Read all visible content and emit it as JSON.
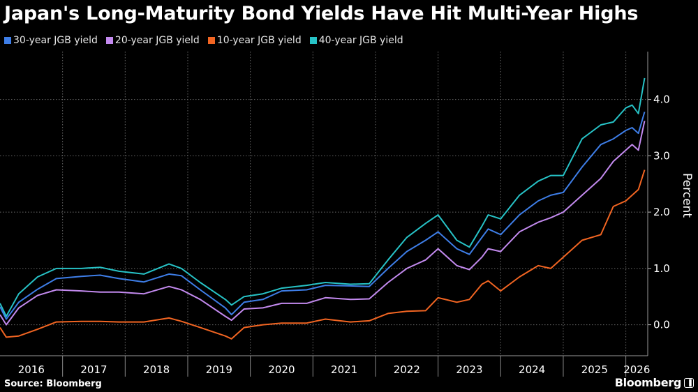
{
  "title": "Japan's Long-Maturity Bond Yields Have Hit Multi-Year Highs",
  "source": "Source: Bloomberg",
  "brand": "Bloomberg",
  "chart_data": {
    "type": "line",
    "title": "Japan's Long-Maturity Bond Yields Have Hit Multi-Year Highs",
    "ylabel": "Percent",
    "xlabel": "",
    "ylim": [
      -0.55,
      4.85
    ],
    "xlim": [
      2016.0,
      2026.35
    ],
    "yticks": [
      "0.0",
      "1.0",
      "2.0",
      "3.0",
      "4.0"
    ],
    "xticks": [
      "2016",
      "2017",
      "2018",
      "2019",
      "2020",
      "2021",
      "2022",
      "2023",
      "2024",
      "2025",
      "2026"
    ],
    "grid": true,
    "legend": "top-left",
    "series": [
      {
        "name": "30-year JGB yield",
        "color": "#3e7ee8",
        "points": [
          [
            2016.0,
            0.32
          ],
          [
            2016.1,
            0.1
          ],
          [
            2016.3,
            0.4
          ],
          [
            2016.6,
            0.63
          ],
          [
            2016.9,
            0.82
          ],
          [
            2017.3,
            0.86
          ],
          [
            2017.6,
            0.88
          ],
          [
            2017.9,
            0.82
          ],
          [
            2018.3,
            0.76
          ],
          [
            2018.7,
            0.9
          ],
          [
            2018.9,
            0.87
          ],
          [
            2019.2,
            0.62
          ],
          [
            2019.6,
            0.3
          ],
          [
            2019.7,
            0.18
          ],
          [
            2019.9,
            0.4
          ],
          [
            2020.2,
            0.45
          ],
          [
            2020.5,
            0.6
          ],
          [
            2020.9,
            0.62
          ],
          [
            2021.2,
            0.7
          ],
          [
            2021.6,
            0.69
          ],
          [
            2021.9,
            0.68
          ],
          [
            2022.2,
            1.0
          ],
          [
            2022.5,
            1.3
          ],
          [
            2022.8,
            1.5
          ],
          [
            2023.0,
            1.65
          ],
          [
            2023.3,
            1.35
          ],
          [
            2023.5,
            1.25
          ],
          [
            2023.7,
            1.55
          ],
          [
            2023.8,
            1.7
          ],
          [
            2024.0,
            1.6
          ],
          [
            2024.3,
            1.95
          ],
          [
            2024.6,
            2.2
          ],
          [
            2024.8,
            2.3
          ],
          [
            2025.0,
            2.35
          ],
          [
            2025.3,
            2.8
          ],
          [
            2025.6,
            3.2
          ],
          [
            2025.8,
            3.3
          ],
          [
            2026.0,
            3.45
          ],
          [
            2026.1,
            3.5
          ],
          [
            2026.2,
            3.4
          ],
          [
            2026.3,
            3.78
          ]
        ]
      },
      {
        "name": "20-year JGB yield",
        "color": "#c38aef",
        "points": [
          [
            2016.0,
            0.18
          ],
          [
            2016.1,
            0.0
          ],
          [
            2016.3,
            0.3
          ],
          [
            2016.6,
            0.52
          ],
          [
            2016.9,
            0.62
          ],
          [
            2017.3,
            0.6
          ],
          [
            2017.6,
            0.58
          ],
          [
            2017.9,
            0.58
          ],
          [
            2018.3,
            0.55
          ],
          [
            2018.7,
            0.68
          ],
          [
            2018.9,
            0.62
          ],
          [
            2019.2,
            0.45
          ],
          [
            2019.6,
            0.15
          ],
          [
            2019.7,
            0.08
          ],
          [
            2019.9,
            0.28
          ],
          [
            2020.2,
            0.3
          ],
          [
            2020.5,
            0.38
          ],
          [
            2020.9,
            0.38
          ],
          [
            2021.2,
            0.48
          ],
          [
            2021.6,
            0.45
          ],
          [
            2021.9,
            0.46
          ],
          [
            2022.2,
            0.75
          ],
          [
            2022.5,
            1.0
          ],
          [
            2022.8,
            1.15
          ],
          [
            2023.0,
            1.35
          ],
          [
            2023.3,
            1.05
          ],
          [
            2023.5,
            0.98
          ],
          [
            2023.7,
            1.2
          ],
          [
            2023.8,
            1.35
          ],
          [
            2024.0,
            1.3
          ],
          [
            2024.3,
            1.65
          ],
          [
            2024.6,
            1.82
          ],
          [
            2024.8,
            1.9
          ],
          [
            2025.0,
            2.0
          ],
          [
            2025.3,
            2.3
          ],
          [
            2025.6,
            2.6
          ],
          [
            2025.8,
            2.9
          ],
          [
            2026.0,
            3.1
          ],
          [
            2026.1,
            3.2
          ],
          [
            2026.2,
            3.1
          ],
          [
            2026.3,
            3.62
          ]
        ]
      },
      {
        "name": "10-year JGB yield",
        "color": "#f26522",
        "points": [
          [
            2016.0,
            -0.05
          ],
          [
            2016.1,
            -0.22
          ],
          [
            2016.3,
            -0.2
          ],
          [
            2016.6,
            -0.08
          ],
          [
            2016.9,
            0.05
          ],
          [
            2017.3,
            0.06
          ],
          [
            2017.6,
            0.06
          ],
          [
            2017.9,
            0.05
          ],
          [
            2018.3,
            0.05
          ],
          [
            2018.7,
            0.12
          ],
          [
            2018.9,
            0.06
          ],
          [
            2019.2,
            -0.05
          ],
          [
            2019.6,
            -0.2
          ],
          [
            2019.7,
            -0.25
          ],
          [
            2019.9,
            -0.05
          ],
          [
            2020.2,
            0.0
          ],
          [
            2020.5,
            0.03
          ],
          [
            2020.9,
            0.03
          ],
          [
            2021.2,
            0.1
          ],
          [
            2021.6,
            0.05
          ],
          [
            2021.9,
            0.07
          ],
          [
            2022.2,
            0.2
          ],
          [
            2022.5,
            0.24
          ],
          [
            2022.8,
            0.25
          ],
          [
            2023.0,
            0.48
          ],
          [
            2023.3,
            0.4
          ],
          [
            2023.5,
            0.45
          ],
          [
            2023.7,
            0.72
          ],
          [
            2023.8,
            0.78
          ],
          [
            2024.0,
            0.6
          ],
          [
            2024.3,
            0.85
          ],
          [
            2024.6,
            1.05
          ],
          [
            2024.8,
            1.0
          ],
          [
            2025.0,
            1.2
          ],
          [
            2025.3,
            1.5
          ],
          [
            2025.6,
            1.6
          ],
          [
            2025.8,
            2.1
          ],
          [
            2026.0,
            2.2
          ],
          [
            2026.1,
            2.3
          ],
          [
            2026.2,
            2.4
          ],
          [
            2026.3,
            2.75
          ]
        ]
      },
      {
        "name": "40-year JGB yield",
        "color": "#27c3c7",
        "points": [
          [
            2016.0,
            0.38
          ],
          [
            2016.1,
            0.15
          ],
          [
            2016.3,
            0.55
          ],
          [
            2016.6,
            0.85
          ],
          [
            2016.9,
            1.0
          ],
          [
            2017.3,
            1.0
          ],
          [
            2017.6,
            1.02
          ],
          [
            2017.9,
            0.95
          ],
          [
            2018.3,
            0.9
          ],
          [
            2018.7,
            1.08
          ],
          [
            2018.9,
            1.0
          ],
          [
            2019.2,
            0.75
          ],
          [
            2019.6,
            0.45
          ],
          [
            2019.7,
            0.35
          ],
          [
            2019.9,
            0.5
          ],
          [
            2020.2,
            0.55
          ],
          [
            2020.5,
            0.65
          ],
          [
            2020.9,
            0.7
          ],
          [
            2021.2,
            0.75
          ],
          [
            2021.6,
            0.72
          ],
          [
            2021.9,
            0.73
          ],
          [
            2022.2,
            1.15
          ],
          [
            2022.5,
            1.55
          ],
          [
            2022.8,
            1.8
          ],
          [
            2023.0,
            1.95
          ],
          [
            2023.3,
            1.5
          ],
          [
            2023.5,
            1.38
          ],
          [
            2023.7,
            1.75
          ],
          [
            2023.8,
            1.95
          ],
          [
            2024.0,
            1.88
          ],
          [
            2024.3,
            2.3
          ],
          [
            2024.6,
            2.55
          ],
          [
            2024.8,
            2.65
          ],
          [
            2025.0,
            2.65
          ],
          [
            2025.3,
            3.3
          ],
          [
            2025.6,
            3.55
          ],
          [
            2025.8,
            3.6
          ],
          [
            2026.0,
            3.85
          ],
          [
            2026.1,
            3.9
          ],
          [
            2026.2,
            3.75
          ],
          [
            2026.3,
            4.38
          ]
        ]
      }
    ]
  }
}
